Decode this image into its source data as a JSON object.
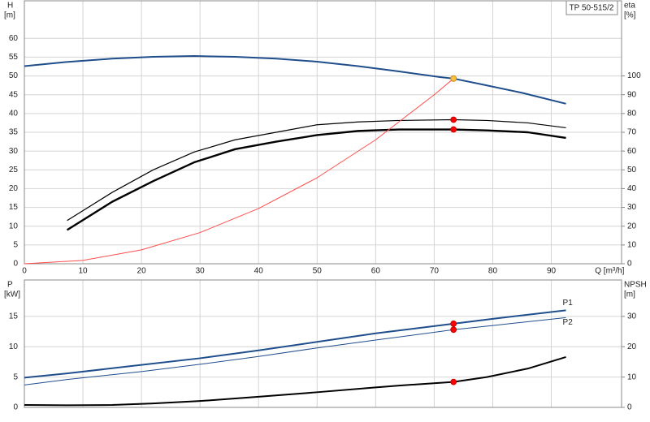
{
  "chart_data": [
    {
      "type": "line",
      "title": "TP 50-515/2",
      "ylabel": "H",
      "ylabel_unit": "[m]",
      "y2label": "eta",
      "y2label_unit": "[%]",
      "xlabel": "Q [m³/h]",
      "xlim": [
        0,
        102
      ],
      "xticks": [
        0,
        10,
        20,
        30,
        40,
        50,
        60,
        70,
        80,
        90
      ],
      "ylim": [
        0,
        70
      ],
      "yticks": [
        0,
        5,
        10,
        15,
        20,
        25,
        30,
        35,
        40,
        45,
        50,
        55,
        60
      ],
      "y2lim": [
        0,
        140
      ],
      "y2ticks": [
        0,
        10,
        20,
        30,
        40,
        50,
        60,
        70,
        80,
        90,
        100
      ],
      "grid": true,
      "series": [
        {
          "color": "#1f4e8c",
          "width": 2,
          "x": [
            0,
            7,
            15,
            22,
            29,
            36,
            43,
            50,
            57,
            64,
            71,
            73.3,
            78,
            85,
            92.5
          ],
          "values": [
            52.6,
            53.7,
            54.6,
            55.1,
            55.3,
            55.1,
            54.6,
            53.8,
            52.6,
            51.2,
            49.7,
            49.3,
            47.8,
            45.5,
            42.6
          ]
        },
        {
          "color": "#000000",
          "width": 1.2,
          "axis": "y2",
          "x": [
            7.3,
            15,
            22,
            29,
            36,
            43,
            50,
            57,
            64,
            73.3,
            79,
            86,
            92.5
          ],
          "values": [
            23,
            38,
            50,
            59.5,
            66,
            70,
            74,
            75.5,
            76.3,
            76.7,
            76.3,
            75,
            72.4
          ]
        },
        {
          "color": "#000000",
          "width": 2.4,
          "axis": "y2",
          "x": [
            7.3,
            15,
            22,
            29,
            36,
            43,
            50,
            57,
            64,
            73.3,
            79,
            86,
            92.5
          ],
          "values": [
            18,
            33,
            44,
            54,
            61,
            65,
            68.5,
            70.7,
            71.5,
            71.5,
            71,
            70,
            67
          ]
        },
        {
          "color": "#ff4d4d",
          "width": 1,
          "x": [
            0,
            10,
            20,
            30,
            40,
            50,
            60,
            70,
            73.3
          ],
          "values": [
            0,
            0.9,
            3.7,
            8.3,
            14.7,
            22.9,
            33.0,
            45.0,
            49.3
          ]
        },
        {
          "color": "#f5c242",
          "marker": true,
          "x": [
            73.3
          ],
          "values": [
            49.3
          ]
        },
        {
          "color": "#ff0000",
          "marker": true,
          "axis": "y2",
          "x": [
            73.3,
            73.3
          ],
          "values": [
            76.7,
            71.5
          ]
        }
      ]
    },
    {
      "type": "line",
      "ylabel": "P",
      "ylabel_unit": "[kW]",
      "y2label": "NPSH",
      "y2label_unit": "[m]",
      "xlim": [
        0,
        102
      ],
      "ylim": [
        0,
        21
      ],
      "yticks": [
        0,
        5,
        10,
        15
      ],
      "y2lim": [
        0,
        42
      ],
      "y2ticks": [
        0,
        10,
        20,
        30
      ],
      "grid": true,
      "series": [
        {
          "name": "P1",
          "color": "#1f4e8c",
          "width": 2,
          "x": [
            0,
            7.3,
            20,
            30,
            40,
            50,
            60,
            73.3,
            80,
            92.5
          ],
          "values": [
            4.9,
            5.6,
            7.0,
            8.1,
            9.4,
            10.8,
            12.2,
            13.8,
            14.6,
            16.0
          ]
        },
        {
          "name": "P2",
          "color": "#1f4e8c",
          "width": 1,
          "x": [
            0,
            7.3,
            20,
            30,
            40,
            50,
            60,
            73.3,
            80,
            92.5
          ],
          "values": [
            3.7,
            4.6,
            5.9,
            7.1,
            8.4,
            9.8,
            11.1,
            12.8,
            13.5,
            14.8
          ]
        },
        {
          "color": "#000000",
          "width": 2,
          "axis": "y2",
          "x": [
            0,
            7.3,
            15,
            22,
            30,
            40,
            50,
            60,
            64,
            73.3,
            79,
            86,
            92.5
          ],
          "values": [
            0.8,
            0.7,
            0.8,
            1.3,
            2.1,
            3.5,
            5.0,
            6.6,
            7.2,
            8.4,
            10,
            12.8,
            16.6
          ]
        },
        {
          "color": "#ff0000",
          "marker": true,
          "x": [
            73.3,
            73.3
          ],
          "values": [
            13.8,
            12.8
          ]
        },
        {
          "color": "#ff0000",
          "marker": true,
          "axis": "y2",
          "x": [
            73.3
          ],
          "values": [
            8.4
          ]
        }
      ]
    }
  ]
}
